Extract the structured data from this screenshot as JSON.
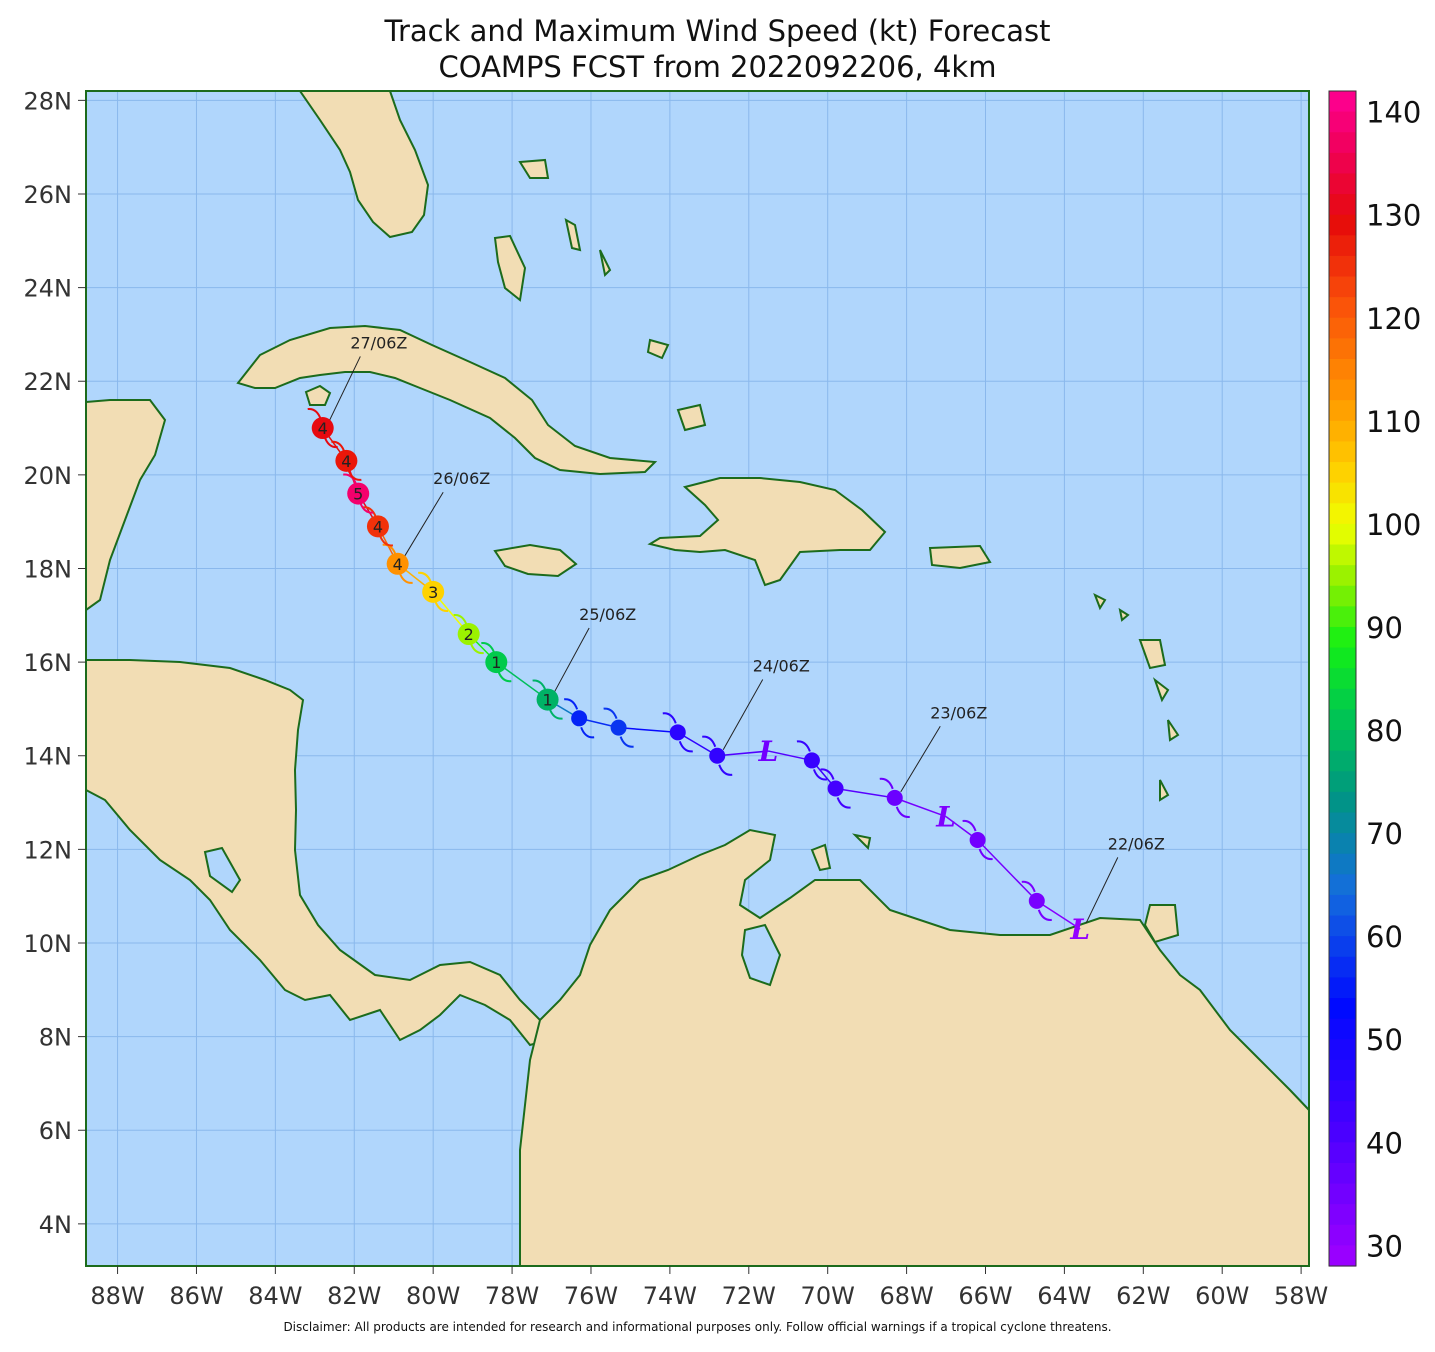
{
  "title": {
    "line1": "Track and Maximum Wind Speed (kt) Forecast",
    "line2": "COAMPS FCST from 2022092206, 4km"
  },
  "map": {
    "lon_range": [
      -88.8,
      -57.8
    ],
    "lat_range": [
      3.1,
      28.2
    ],
    "colors": {
      "ocean": "#b0d6fc",
      "land": "#f2ddb4",
      "coast": "#1c6b1c",
      "grid": "#8ab8ec",
      "track_label_line": "#222222"
    },
    "lat_ticks": [
      {
        "value": 28,
        "label": "28N"
      },
      {
        "value": 26,
        "label": "26N"
      },
      {
        "value": 24,
        "label": "24N"
      },
      {
        "value": 22,
        "label": "22N"
      },
      {
        "value": 20,
        "label": "20N"
      },
      {
        "value": 18,
        "label": "18N"
      },
      {
        "value": 16,
        "label": "16N"
      },
      {
        "value": 14,
        "label": "14N"
      },
      {
        "value": 12,
        "label": "12N"
      },
      {
        "value": 10,
        "label": "10N"
      },
      {
        "value": 8,
        "label": "8N"
      },
      {
        "value": 6,
        "label": "6N"
      },
      {
        "value": 4,
        "label": "4N"
      }
    ],
    "lon_ticks": [
      {
        "value": -88,
        "label": "88W"
      },
      {
        "value": -86,
        "label": "86W"
      },
      {
        "value": -84,
        "label": "84W"
      },
      {
        "value": -82,
        "label": "82W"
      },
      {
        "value": -80,
        "label": "80W"
      },
      {
        "value": -78,
        "label": "78W"
      },
      {
        "value": -76,
        "label": "76W"
      },
      {
        "value": -74,
        "label": "74W"
      },
      {
        "value": -72,
        "label": "72W"
      },
      {
        "value": -70,
        "label": "70W"
      },
      {
        "value": -68,
        "label": "68W"
      },
      {
        "value": -66,
        "label": "66W"
      },
      {
        "value": -64,
        "label": "64W"
      },
      {
        "value": -62,
        "label": "62W"
      },
      {
        "value": -60,
        "label": "60W"
      },
      {
        "value": -58,
        "label": "58W"
      }
    ]
  },
  "track": {
    "points": [
      {
        "lon": -63.6,
        "lat": 10.3,
        "wind": 30,
        "symbol": "L"
      },
      {
        "lon": -64.7,
        "lat": 10.9,
        "wind": 34,
        "symbol": "ts"
      },
      {
        "lon": -66.2,
        "lat": 12.2,
        "wind": 35,
        "symbol": "ts"
      },
      {
        "lon": -67.0,
        "lat": 12.7,
        "wind": 33,
        "symbol": "L"
      },
      {
        "lon": -68.3,
        "lat": 13.1,
        "wind": 36,
        "symbol": "ts"
      },
      {
        "lon": -69.8,
        "lat": 13.3,
        "wind": 42,
        "symbol": "ts"
      },
      {
        "lon": -70.4,
        "lat": 13.9,
        "wind": 44,
        "symbol": "ts"
      },
      {
        "lon": -71.5,
        "lat": 14.1,
        "wind": 35,
        "symbol": "L"
      },
      {
        "lon": -72.8,
        "lat": 14.0,
        "wind": 45,
        "symbol": "ts"
      },
      {
        "lon": -73.8,
        "lat": 14.5,
        "wind": 46,
        "symbol": "ts"
      },
      {
        "lon": -75.3,
        "lat": 14.6,
        "wind": 58,
        "symbol": "ts"
      },
      {
        "lon": -76.3,
        "lat": 14.8,
        "wind": 56,
        "symbol": "ts"
      },
      {
        "lon": -77.1,
        "lat": 15.2,
        "wind": 78,
        "symbol": "1"
      },
      {
        "lon": -78.4,
        "lat": 16.0,
        "wind": 82,
        "symbol": "1"
      },
      {
        "lon": -79.1,
        "lat": 16.6,
        "wind": 95,
        "symbol": "2"
      },
      {
        "lon": -80.0,
        "lat": 17.5,
        "wind": 105,
        "symbol": "3"
      },
      {
        "lon": -80.9,
        "lat": 18.1,
        "wind": 113,
        "symbol": "4"
      },
      {
        "lon": -81.4,
        "lat": 18.9,
        "wind": 125,
        "symbol": "4"
      },
      {
        "lon": -81.9,
        "lat": 19.6,
        "wind": 138,
        "symbol": "5"
      },
      {
        "lon": -82.2,
        "lat": 20.3,
        "wind": 128,
        "symbol": "4"
      },
      {
        "lon": -82.8,
        "lat": 21.0,
        "wind": 130,
        "symbol": "4"
      }
    ],
    "time_labels": [
      {
        "text": "22/06Z",
        "lon": -62.9,
        "lat": 12.0,
        "anchor_lon": -63.6,
        "anchor_lat": 10.3
      },
      {
        "text": "23/06Z",
        "lon": -67.4,
        "lat": 14.8,
        "anchor_lon": -68.3,
        "anchor_lat": 13.1
      },
      {
        "text": "24/06Z",
        "lon": -71.9,
        "lat": 15.8,
        "anchor_lon": -72.8,
        "anchor_lat": 14.0
      },
      {
        "text": "25/06Z",
        "lon": -76.3,
        "lat": 16.9,
        "anchor_lon": -77.1,
        "anchor_lat": 15.2
      },
      {
        "text": "26/06Z",
        "lon": -80.0,
        "lat": 19.8,
        "anchor_lon": -80.9,
        "anchor_lat": 18.1
      },
      {
        "text": "27/06Z",
        "lon": -82.1,
        "lat": 22.7,
        "anchor_lon": -82.8,
        "anchor_lat": 21.0
      }
    ]
  },
  "colorbar": {
    "min": 28,
    "max": 142,
    "labels": [
      "140",
      "130",
      "120",
      "110",
      "100",
      "90",
      "80",
      "70",
      "60",
      "50",
      "40",
      "30"
    ],
    "label_values": [
      140,
      130,
      120,
      110,
      100,
      90,
      80,
      70,
      60,
      50,
      40,
      30
    ]
  },
  "disclaimer": "Disclaimer: All products are intended for research and informational purposes only.  Follow official warnings if a tropical cyclone threatens."
}
